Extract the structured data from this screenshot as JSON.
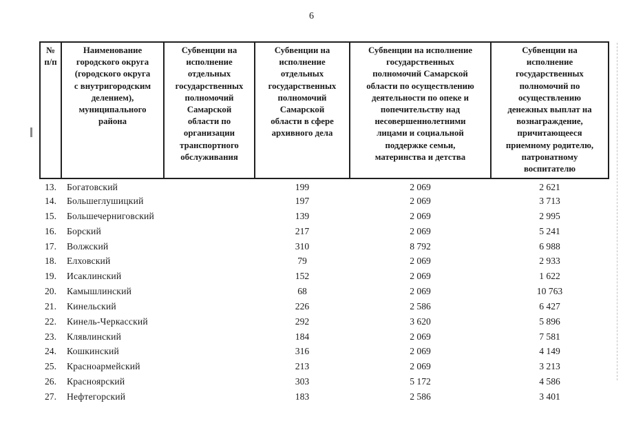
{
  "page": {
    "number": "6"
  },
  "table": {
    "headers": [
      "№\nп/п",
      "Наименование\nгородского округа\n(городского округа\nс внутригородским\nделением),\nмуниципального\nрайона",
      "Субвенции на\nисполнение\nотдельных\nгосударственных\nполномочий\nСамарской\nобласти по\nорганизации\nтранспортного\nобслуживания",
      "Субвенции на\nисполнение\nотдельных\nгосударственных\nполномочий\nСамарской\nобласти в сфере\nархивного дела",
      "Субвенции на исполнение\nгосударственных\nполномочий Самарской\nобласти по осуществлению\nдеятельности по опеке и\nпопечительству над\nнесовершеннолетними\nлицами и социальной\nподдержке семьи,\nматеринства и детства",
      "Субвенции на\nисполнение\nгосударственных\nполномочий по\nосуществлению\nденежных выплат на\nвознаграждение,\nпричитающееся\nприемному родителю,\nпатронатному\nвоспитателю"
    ],
    "rows": [
      {
        "num": "13.",
        "name": "Богатовский",
        "transport": "",
        "archive": "199",
        "custody": "2 069",
        "payments": "2 621"
      },
      {
        "num": "14.",
        "name": "Большеглушицкий",
        "transport": "",
        "archive": "197",
        "custody": "2 069",
        "payments": "3 713"
      },
      {
        "num": "15.",
        "name": "Большечерниговский",
        "transport": "",
        "archive": "139",
        "custody": "2 069",
        "payments": "2 995"
      },
      {
        "num": "16.",
        "name": "Борский",
        "transport": "",
        "archive": "217",
        "custody": "2 069",
        "payments": "5 241"
      },
      {
        "num": "17.",
        "name": "Волжский",
        "transport": "",
        "archive": "310",
        "custody": "8 792",
        "payments": "6 988"
      },
      {
        "num": "18.",
        "name": "Елховский",
        "transport": "",
        "archive": "79",
        "custody": "2 069",
        "payments": "2 933"
      },
      {
        "num": "19.",
        "name": "Исаклинский",
        "transport": "",
        "archive": "152",
        "custody": "2 069",
        "payments": "1 622"
      },
      {
        "num": "20.",
        "name": "Камышлинский",
        "transport": "",
        "archive": "68",
        "custody": "2 069",
        "payments": "10 763"
      },
      {
        "num": "21.",
        "name": "Кинельский",
        "transport": "",
        "archive": "226",
        "custody": "2 586",
        "payments": "6 427"
      },
      {
        "num": "22.",
        "name": "Кинель-Черкасский",
        "transport": "",
        "archive": "292",
        "custody": "3 620",
        "payments": "5 896"
      },
      {
        "num": "23.",
        "name": "Клявлинский",
        "transport": "",
        "archive": "184",
        "custody": "2 069",
        "payments": "7 581"
      },
      {
        "num": "24.",
        "name": "Кошкинский",
        "transport": "",
        "archive": "316",
        "custody": "2 069",
        "payments": "4 149"
      },
      {
        "num": "25.",
        "name": "Красноармейский",
        "transport": "",
        "archive": "213",
        "custody": "2 069",
        "payments": "3 213"
      },
      {
        "num": "26.",
        "name": "Красноярский",
        "transport": "",
        "archive": "303",
        "custody": "5 172",
        "payments": "4 586"
      },
      {
        "num": "27.",
        "name": "Нефтегорский",
        "transport": "",
        "archive": "183",
        "custody": "2 586",
        "payments": "3 401"
      }
    ]
  }
}
